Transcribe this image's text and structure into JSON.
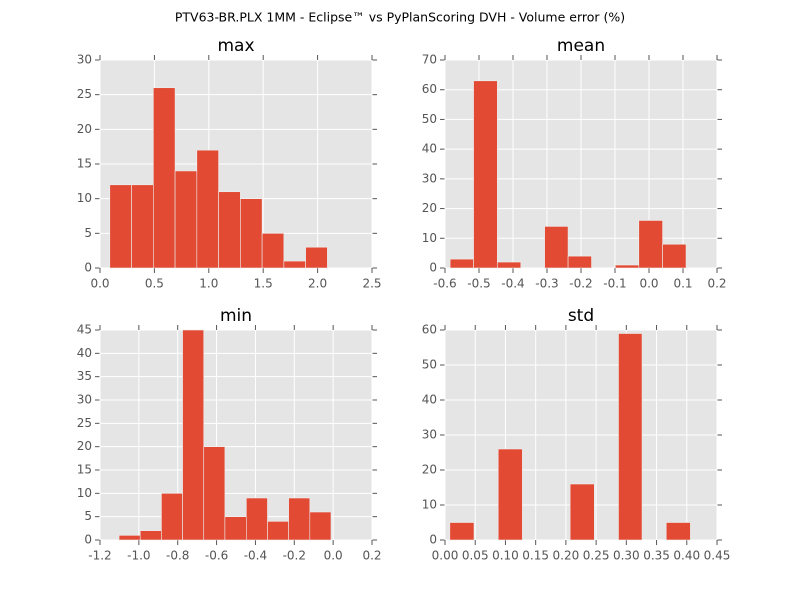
{
  "title": "PTV63-BR.PLX 1MM - Eclipse™ vs PyPlanScoring DVH - Volume error (%)",
  "chart_data": [
    {
      "type": "histogram",
      "title": "max",
      "color": "#e24a33",
      "grid": true,
      "bins": [
        0.09,
        0.29,
        0.49,
        0.69,
        0.89,
        1.09,
        1.29,
        1.49,
        1.69,
        1.89,
        2.09
      ],
      "values": [
        12,
        12,
        26,
        14,
        17,
        11,
        10,
        5,
        1,
        3
      ],
      "xlim": [
        0,
        2.5
      ],
      "xticks": [
        {
          "value": 0,
          "label": "0.0"
        },
        0.5,
        {
          "value": 1,
          "label": "1.0"
        },
        1.5,
        {
          "value": 2,
          "label": "2.0"
        },
        2.5
      ],
      "ylim": [
        0,
        30
      ],
      "yticks": [
        0,
        5,
        10,
        15,
        20,
        25,
        30
      ]
    },
    {
      "type": "histogram",
      "title": "mean",
      "color": "#e24a33",
      "grid": true,
      "bins": [
        -0.585,
        -0.516,
        -0.446,
        -0.377,
        -0.307,
        -0.238,
        -0.169,
        -0.099,
        -0.03,
        0.04,
        0.109
      ],
      "values": [
        3,
        63,
        2,
        0,
        14,
        4,
        0,
        1,
        16,
        8
      ],
      "xlim": [
        -0.6,
        0.2
      ],
      "xticks": [
        -0.6,
        -0.5,
        -0.4,
        -0.3,
        -0.2,
        -0.1,
        {
          "value": 0,
          "label": "0.0"
        },
        0.1,
        0.2
      ],
      "ylim": [
        0,
        70
      ],
      "yticks": [
        0,
        10,
        20,
        30,
        40,
        50,
        60,
        70
      ]
    },
    {
      "type": "histogram",
      "title": "min",
      "color": "#e24a33",
      "grid": true,
      "bins": [
        -1.102,
        -0.993,
        -0.884,
        -0.775,
        -0.666,
        -0.557,
        -0.447,
        -0.338,
        -0.229,
        -0.12,
        -0.011
      ],
      "values": [
        1,
        2,
        10,
        45,
        20,
        5,
        9,
        4,
        9,
        6
      ],
      "xlim": [
        -1.2,
        0.2
      ],
      "xticks": [
        -1.2,
        {
          "value": -1,
          "label": "-1.0"
        },
        -0.8,
        -0.6,
        -0.4,
        -0.2,
        {
          "value": 0,
          "label": "0.0"
        },
        0.2
      ],
      "ylim": [
        0,
        45
      ],
      "yticks": [
        0,
        5,
        10,
        15,
        20,
        25,
        30,
        35,
        40,
        45
      ]
    },
    {
      "type": "histogram",
      "title": "std",
      "color": "#e24a33",
      "grid": true,
      "bins": [
        0.008,
        0.048,
        0.088,
        0.128,
        0.167,
        0.207,
        0.247,
        0.287,
        0.326,
        0.366,
        0.406
      ],
      "values": [
        5,
        0,
        26,
        0,
        0,
        16,
        0,
        59,
        0,
        5
      ],
      "xlim": [
        0,
        0.45
      ],
      "xticks": [
        {
          "value": 0,
          "label": "0.00"
        },
        0.05,
        {
          "value": 0.1,
          "label": "0.10"
        },
        0.15,
        {
          "value": 0.2,
          "label": "0.20"
        },
        0.25,
        {
          "value": 0.3,
          "label": "0.30"
        },
        0.35,
        {
          "value": 0.4,
          "label": "0.40"
        },
        0.45
      ],
      "ylim": [
        0,
        60
      ],
      "yticks": [
        0,
        10,
        20,
        30,
        40,
        50,
        60
      ]
    }
  ]
}
